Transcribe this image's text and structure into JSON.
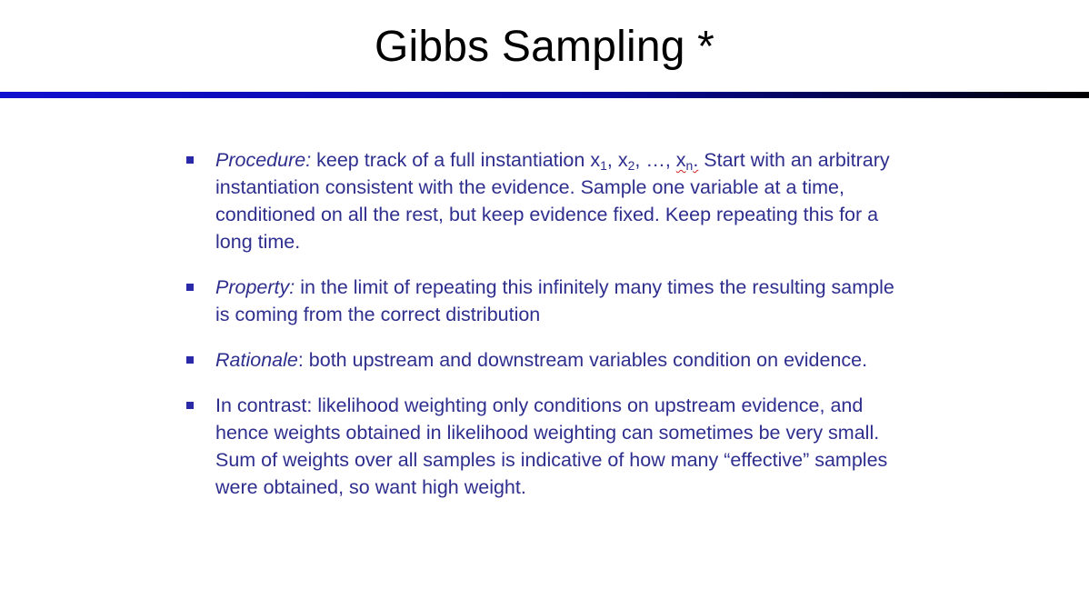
{
  "slide": {
    "title": "Gibbs Sampling *",
    "bullets": [
      {
        "lead": "Procedure:",
        "pre": " keep track of a full instantiation x",
        "s1": "1",
        "m1": ", x",
        "s2": "2",
        "m2": ", …, ",
        "xn": "x",
        "sn": "n",
        "dot": ".",
        "rest": "   Start with an arbitrary instantiation consistent with the evidence.  Sample one variable at a time, conditioned on all the rest, but keep evidence fixed.  Keep repeating this for a long time."
      },
      {
        "lead": "Property:",
        "text": " in the limit of repeating this infinitely many times the resulting sample is coming from the correct distribution"
      },
      {
        "lead": "Rationale",
        "text": ": both upstream and downstream variables condition on evidence."
      },
      {
        "text": "In contrast: likelihood weighting only conditions on upstream evidence, and hence weights obtained in likelihood weighting can sometimes be very small.  Sum of weights over all samples is indicative of how many “effective” samples were obtained, so want high weight."
      }
    ]
  },
  "colors": {
    "title": "#000000",
    "body_text": "#2e2e8e",
    "bullet": "#2a2aa8",
    "rule_start": "#1010d0",
    "rule_end": "#000000"
  }
}
